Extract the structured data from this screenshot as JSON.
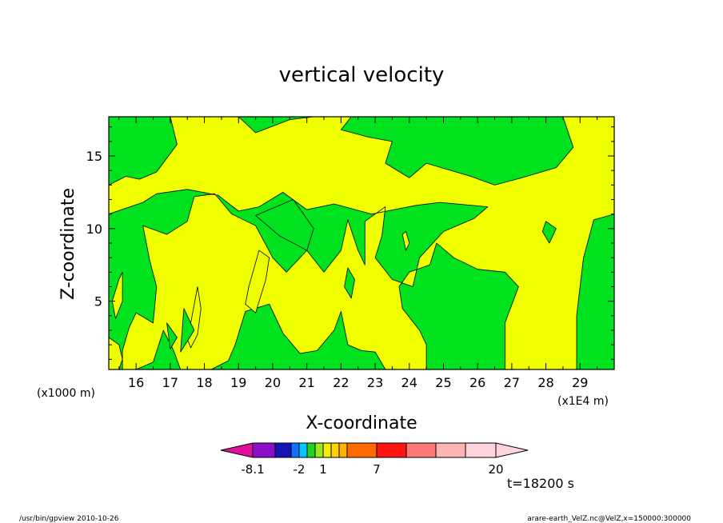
{
  "chart_data": {
    "type": "heatmap",
    "title": "vertical velocity",
    "xlabel": "X-coordinate",
    "ylabel": "Z-coordinate",
    "x_unit_left": "(x1000 m)",
    "x_unit_right": "(x1E4 m)",
    "xlim": [
      15.2,
      30.0
    ],
    "ylim": [
      0.3,
      17.7
    ],
    "xticks": [
      16,
      17,
      18,
      19,
      20,
      21,
      22,
      23,
      24,
      25,
      26,
      27,
      28,
      29
    ],
    "yticks": [
      5,
      10,
      15
    ],
    "colorbar": {
      "colors": [
        "#e0109c",
        "#8a10c8",
        "#1414b4",
        "#1470ff",
        "#00c8ff",
        "#1ed21e",
        "#9ee61e",
        "#f0f000",
        "#ffd200",
        "#ffb400",
        "#ff6a00",
        "#ff1414",
        "#ff7878",
        "#ffb4b4",
        "#ffd4dc"
      ],
      "labels": [
        "-8.1",
        "-2",
        "1",
        "7",
        "20"
      ]
    },
    "fill_colors": {
      "positive": "#f0ff00",
      "negative": "#00e21e"
    },
    "fields": [
      {
        "name": "positive",
        "points": [
          [
            15.2,
            0.3
          ],
          [
            15.5,
            0.3
          ],
          [
            15.6,
            1.0
          ],
          [
            15.5,
            2.0
          ],
          [
            15.2,
            2.5
          ]
        ]
      },
      {
        "name": "positive",
        "points": [
          [
            15.2,
            13.0
          ],
          [
            15.7,
            13.6
          ],
          [
            16.1,
            13.4
          ],
          [
            16.6,
            13.9
          ],
          [
            17.2,
            15.8
          ],
          [
            17.0,
            17.7
          ],
          [
            19.0,
            17.7
          ],
          [
            19.5,
            16.6
          ],
          [
            20.5,
            17.5
          ],
          [
            21.2,
            17.7
          ],
          [
            22.3,
            17.7
          ],
          [
            22.0,
            16.8
          ],
          [
            22.8,
            16.3
          ],
          [
            23.5,
            16.0
          ],
          [
            23.3,
            14.5
          ],
          [
            24.0,
            13.5
          ],
          [
            24.5,
            14.5
          ],
          [
            25.8,
            13.6
          ],
          [
            26.5,
            13.0
          ],
          [
            27.3,
            13.5
          ],
          [
            28.3,
            14.2
          ],
          [
            28.8,
            15.6
          ],
          [
            28.5,
            17.7
          ],
          [
            30.0,
            17.7
          ],
          [
            30.0,
            11.0
          ],
          [
            29.4,
            10.6
          ],
          [
            29.1,
            8.0
          ],
          [
            28.9,
            4.0
          ],
          [
            28.9,
            0.3
          ],
          [
            26.8,
            0.3
          ],
          [
            26.8,
            3.5
          ],
          [
            27.2,
            6.0
          ],
          [
            26.8,
            7.0
          ],
          [
            26.0,
            7.2
          ],
          [
            25.3,
            8.0
          ],
          [
            24.8,
            9.0
          ],
          [
            24.6,
            7.5
          ],
          [
            24.0,
            7.0
          ],
          [
            23.7,
            6.0
          ],
          [
            23.8,
            4.5
          ],
          [
            24.3,
            3.0
          ],
          [
            24.5,
            2.0
          ],
          [
            24.5,
            0.3
          ],
          [
            23.3,
            0.3
          ],
          [
            23.0,
            1.5
          ],
          [
            22.6,
            1.6
          ],
          [
            22.2,
            2.0
          ],
          [
            22.0,
            4.3
          ],
          [
            21.8,
            3.0
          ],
          [
            21.3,
            1.6
          ],
          [
            20.8,
            1.4
          ],
          [
            20.3,
            2.8
          ],
          [
            19.9,
            4.8
          ],
          [
            19.2,
            4.3
          ],
          [
            18.9,
            2.0
          ],
          [
            18.7,
            0.9
          ],
          [
            18.2,
            0.3
          ],
          [
            17.3,
            0.3
          ],
          [
            17.1,
            1.6
          ],
          [
            16.8,
            3.0
          ],
          [
            16.5,
            0.8
          ],
          [
            16.0,
            0.3
          ],
          [
            15.6,
            0.3
          ],
          [
            15.6,
            1.6
          ],
          [
            15.8,
            3.2
          ],
          [
            16.0,
            4.2
          ],
          [
            16.5,
            3.5
          ],
          [
            16.6,
            6.0
          ],
          [
            16.4,
            7.8
          ],
          [
            16.2,
            10.2
          ],
          [
            16.9,
            9.6
          ],
          [
            17.5,
            10.5
          ],
          [
            17.7,
            12.2
          ],
          [
            18.3,
            12.4
          ],
          [
            18.8,
            11.0
          ],
          [
            19.5,
            10.2
          ],
          [
            20.0,
            8.0
          ],
          [
            20.4,
            7.0
          ],
          [
            21.0,
            8.5
          ],
          [
            21.5,
            7.0
          ],
          [
            22.0,
            8.5
          ],
          [
            22.2,
            10.6
          ],
          [
            22.5,
            8.5
          ],
          [
            22.7,
            7.5
          ],
          [
            22.7,
            10.5
          ],
          [
            23.3,
            11.5
          ],
          [
            23.2,
            9.5
          ],
          [
            23.0,
            8.0
          ],
          [
            23.5,
            6.5
          ],
          [
            24.1,
            6.0
          ],
          [
            24.3,
            8.0
          ],
          [
            25.0,
            9.8
          ],
          [
            25.9,
            10.7
          ],
          [
            26.3,
            11.5
          ],
          [
            24.9,
            11.8
          ],
          [
            24.2,
            11.6
          ],
          [
            22.9,
            11.0
          ],
          [
            21.8,
            11.7
          ],
          [
            21.0,
            11.3
          ],
          [
            20.3,
            12.5
          ],
          [
            19.6,
            11.5
          ],
          [
            19.0,
            11.2
          ],
          [
            18.4,
            12.3
          ],
          [
            17.5,
            12.7
          ],
          [
            16.6,
            12.4
          ],
          [
            16.2,
            11.8
          ],
          [
            15.2,
            11.0
          ]
        ]
      },
      {
        "name": "positive",
        "points": [
          [
            15.3,
            5.0
          ],
          [
            15.5,
            6.5
          ],
          [
            15.6,
            7.0
          ],
          [
            15.6,
            5.0
          ],
          [
            15.4,
            3.8
          ]
        ]
      },
      {
        "name": "positive",
        "points": [
          [
            17.8,
            6.0
          ],
          [
            17.6,
            3.5
          ],
          [
            17.4,
            3.0
          ],
          [
            17.6,
            1.8
          ],
          [
            17.8,
            2.7
          ],
          [
            17.9,
            4.5
          ]
        ]
      },
      {
        "name": "positive",
        "points": [
          [
            19.6,
            8.5
          ],
          [
            19.3,
            6.0
          ],
          [
            19.2,
            4.8
          ],
          [
            19.5,
            4.2
          ],
          [
            19.8,
            6.5
          ],
          [
            19.9,
            8.0
          ]
        ]
      },
      {
        "name": "positive",
        "points": [
          [
            23.8,
            9.6
          ],
          [
            23.9,
            8.5
          ],
          [
            24.0,
            9.0
          ],
          [
            23.9,
            9.8
          ]
        ]
      },
      {
        "name": "negative",
        "points": [
          [
            21.0,
            8.5
          ],
          [
            21.2,
            10.0
          ],
          [
            20.6,
            12.0
          ],
          [
            19.5,
            10.9
          ],
          [
            20.2,
            9.5
          ]
        ]
      },
      {
        "name": "negative",
        "points": [
          [
            17.7,
            3.0
          ],
          [
            17.3,
            1.5
          ],
          [
            17.4,
            4.5
          ]
        ]
      },
      {
        "name": "negative",
        "points": [
          [
            22.1,
            6.0
          ],
          [
            22.3,
            5.2
          ],
          [
            22.4,
            6.5
          ],
          [
            22.2,
            7.3
          ]
        ]
      },
      {
        "name": "negative",
        "points": [
          [
            28.0,
            10.5
          ],
          [
            28.3,
            10.0
          ],
          [
            28.1,
            9.0
          ],
          [
            27.9,
            9.8
          ]
        ]
      },
      {
        "name": "negative",
        "points": [
          [
            17.0,
            1.7
          ],
          [
            16.9,
            3.5
          ],
          [
            17.2,
            2.5
          ]
        ]
      }
    ]
  },
  "info": {
    "time": "t=18200 s",
    "footer_left": "/usr/bin/gpview   2010-10-26",
    "footer_right": "arare-earth_VelZ.nc@VelZ,x=150000:300000"
  }
}
